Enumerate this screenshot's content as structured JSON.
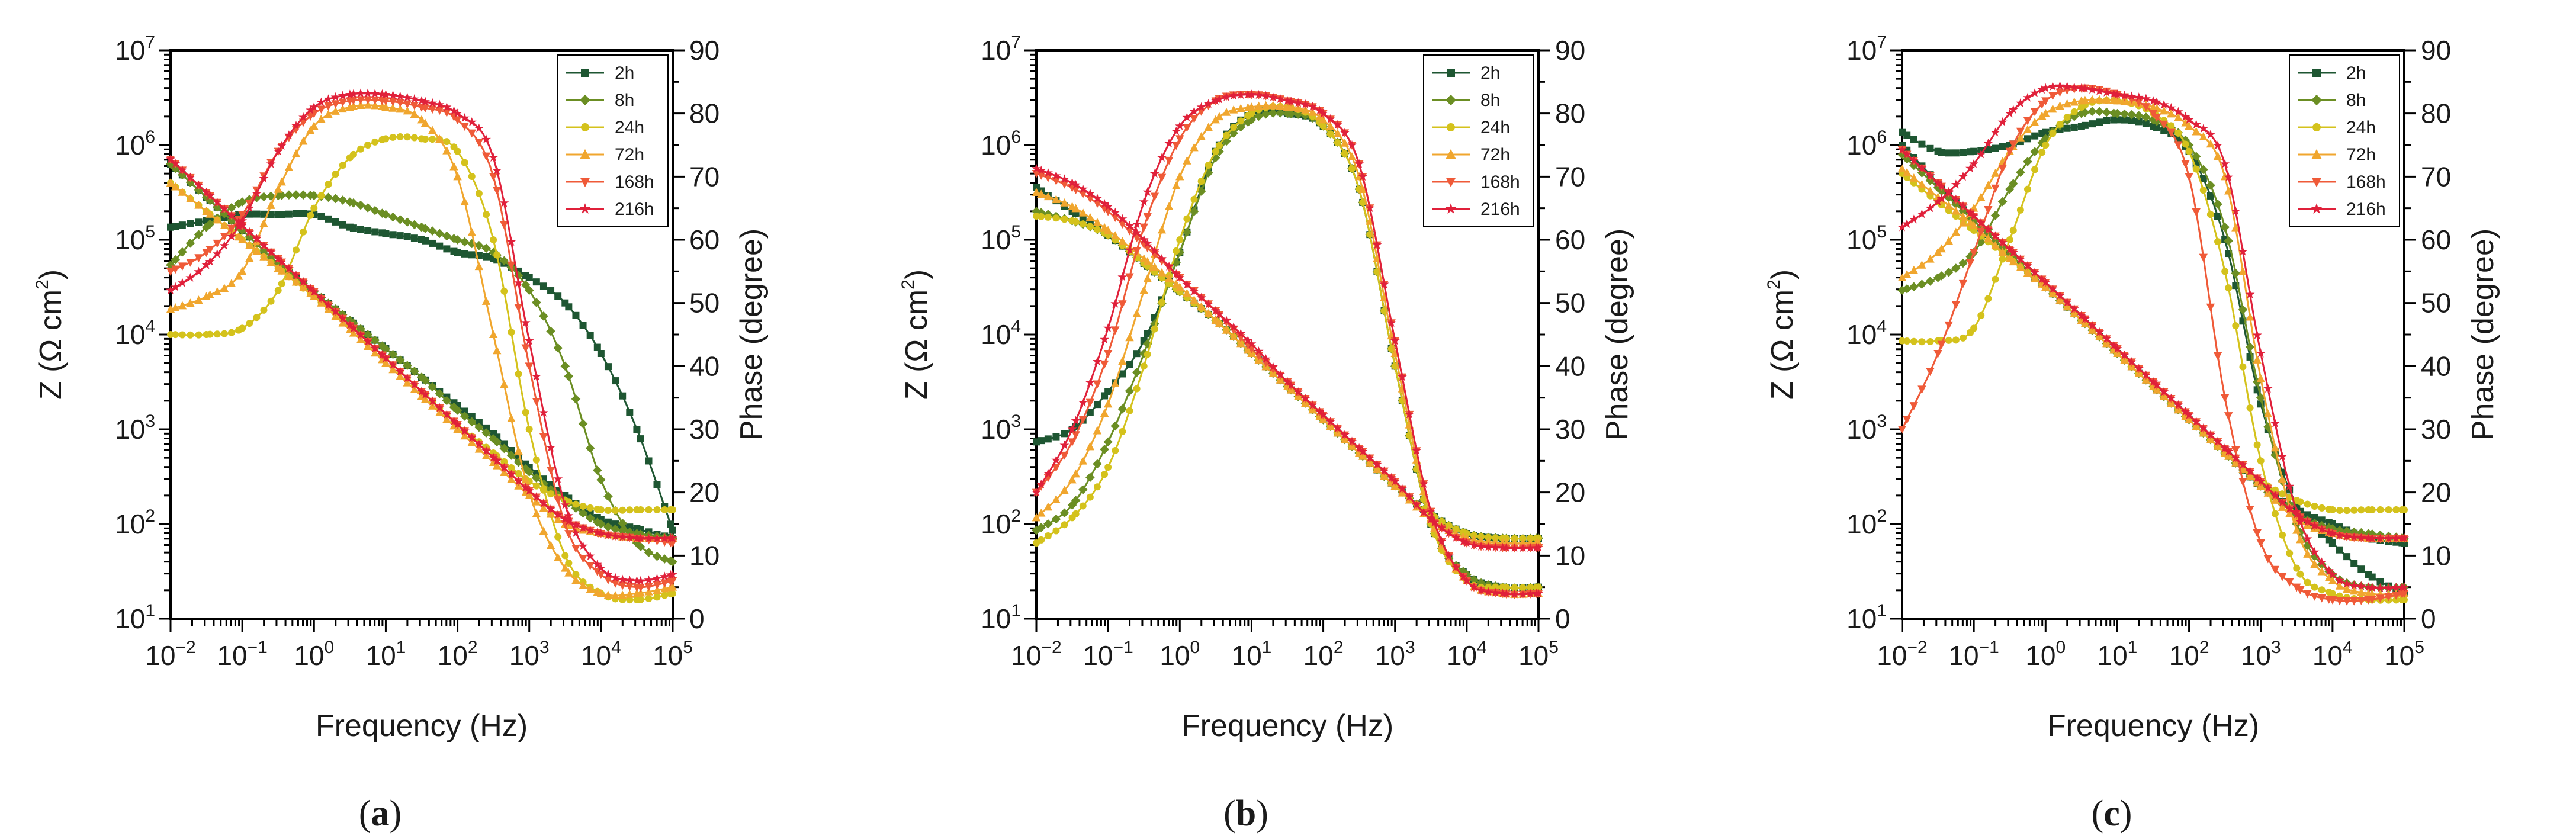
{
  "figure": {
    "panels": [
      "a",
      "b",
      "c"
    ],
    "legend_position": "top-right"
  },
  "series_style": [
    {
      "name": "2h",
      "color": "#1e5632",
      "marker": "square"
    },
    {
      "name": "8h",
      "color": "#6b8e23",
      "marker": "diamond"
    },
    {
      "name": "24h",
      "color": "#d4c21c",
      "marker": "circle"
    },
    {
      "name": "72h",
      "color": "#f0a62e",
      "marker": "triangle-up"
    },
    {
      "name": "168h",
      "color": "#ef5a38",
      "marker": "triangle-down"
    },
    {
      "name": "216h",
      "color": "#e0203a",
      "marker": "star"
    }
  ],
  "chart_data": [
    {
      "type": "line",
      "panel": "a",
      "title": "",
      "xlabel": "Frequency (Hz)",
      "ylabel": "Z (Ω cm²)",
      "y2label": "Phase (degree)",
      "xscale": "log",
      "xlim": [
        0.01,
        100000
      ],
      "yscale": "log",
      "ylim": [
        10,
        10000000
      ],
      "y2lim": [
        0,
        90
      ],
      "x_ticks": [
        "10-2",
        "10-1",
        "100",
        "101",
        "102",
        "103",
        "104",
        "105"
      ],
      "y_ticks": [
        "101",
        "102",
        "103",
        "104",
        "105",
        "106",
        "107"
      ],
      "y2_ticks": [
        "0",
        "10",
        "20",
        "30",
        "40",
        "50",
        "60",
        "70",
        "80",
        "90"
      ],
      "legend": [
        "2h",
        "8h",
        "24h",
        "72h",
        "168h",
        "216h"
      ],
      "x": [
        -2,
        -1.5,
        -1,
        -0.5,
        0,
        0.5,
        1,
        1.5,
        2,
        2.5,
        3,
        3.5,
        4,
        4.5,
        5
      ],
      "series": [
        {
          "name": "2h",
          "impedance_log10": [
            5.8,
            5.45,
            5.1,
            4.75,
            4.45,
            4.15,
            3.85,
            3.55,
            3.25,
            2.95,
            2.6,
            2.3,
            2.05,
            1.95,
            1.85
          ],
          "phase": [
            62,
            63,
            64,
            64,
            64,
            62,
            61,
            60,
            58,
            57,
            54,
            50,
            42,
            30,
            14
          ]
        },
        {
          "name": "8h",
          "impedance_log10": [
            5.8,
            5.45,
            5.1,
            4.75,
            4.45,
            4.15,
            3.85,
            3.55,
            3.2,
            2.9,
            2.55,
            2.25,
            2.0,
            1.9,
            1.85
          ],
          "phase": [
            56,
            62,
            66,
            67,
            67,
            66,
            64,
            62,
            60,
            58,
            52,
            40,
            22,
            12,
            9
          ]
        },
        {
          "name": "24h",
          "impedance_log10": [
            5.6,
            5.3,
            5.0,
            4.7,
            4.4,
            4.1,
            3.75,
            3.4,
            3.05,
            2.75,
            2.45,
            2.25,
            2.15,
            2.15,
            2.15
          ],
          "phase": [
            45,
            45,
            46,
            52,
            65,
            73,
            76,
            76,
            74,
            60,
            30,
            10,
            4,
            3,
            4
          ]
        },
        {
          "name": "72h",
          "impedance_log10": [
            5.6,
            5.3,
            5.0,
            4.7,
            4.4,
            4.05,
            3.7,
            3.35,
            3.0,
            2.65,
            2.3,
            2.0,
            1.9,
            1.85,
            1.85
          ],
          "phase": [
            49,
            51,
            55,
            68,
            78,
            81,
            81,
            79,
            70,
            45,
            20,
            8,
            4,
            4,
            5
          ]
        },
        {
          "name": "168h",
          "impedance_log10": [
            5.85,
            5.5,
            5.15,
            4.8,
            4.45,
            4.1,
            3.75,
            3.4,
            3.05,
            2.7,
            2.35,
            2.05,
            1.9,
            1.85,
            1.8
          ],
          "phase": [
            55,
            58,
            64,
            74,
            80,
            82,
            82,
            81,
            79,
            70,
            40,
            15,
            7,
            5,
            6
          ]
        },
        {
          "name": "216h",
          "impedance_log10": [
            5.85,
            5.5,
            5.15,
            4.8,
            4.45,
            4.1,
            3.75,
            3.4,
            3.05,
            2.7,
            2.35,
            2.05,
            1.9,
            1.85,
            1.85
          ],
          "phase": [
            52,
            56,
            63,
            74,
            81,
            83,
            83,
            82,
            80,
            73,
            44,
            18,
            8,
            6,
            7
          ]
        }
      ]
    },
    {
      "type": "line",
      "panel": "b",
      "title": "",
      "xlabel": "Frequency (Hz)",
      "ylabel": "Z (Ω cm²)",
      "y2label": "Phase (degree)",
      "xscale": "log",
      "xlim": [
        0.01,
        100000
      ],
      "yscale": "log",
      "ylim": [
        10,
        10000000
      ],
      "y2lim": [
        0,
        90
      ],
      "x_ticks": [
        "10-2",
        "10-1",
        "100",
        "101",
        "102",
        "103",
        "104",
        "105"
      ],
      "y_ticks": [
        "101",
        "102",
        "103",
        "104",
        "105",
        "106",
        "107"
      ],
      "y2_ticks": [
        "0",
        "10",
        "20",
        "30",
        "40",
        "50",
        "60",
        "70",
        "80",
        "90"
      ],
      "legend": [
        "2h",
        "8h",
        "24h",
        "72h",
        "168h",
        "216h"
      ],
      "x": [
        -2,
        -1.5,
        -1,
        -0.5,
        0,
        0.5,
        1,
        1.5,
        2,
        2.5,
        3,
        3.5,
        4,
        4.5,
        5
      ],
      "series": [
        {
          "name": "2h",
          "impedance_log10": [
            5.55,
            5.3,
            5.05,
            4.75,
            4.45,
            4.15,
            3.8,
            3.45,
            3.1,
            2.75,
            2.4,
            2.1,
            1.9,
            1.85,
            1.85
          ],
          "phase": [
            28,
            30,
            36,
            44,
            58,
            74,
            80,
            80,
            78,
            68,
            40,
            15,
            7,
            5,
            5
          ]
        },
        {
          "name": "8h",
          "impedance_log10": [
            5.3,
            5.2,
            5.05,
            4.75,
            4.45,
            4.15,
            3.8,
            3.45,
            3.1,
            2.75,
            2.4,
            2.1,
            1.9,
            1.85,
            1.85
          ],
          "phase": [
            14,
            18,
            28,
            42,
            58,
            73,
            79,
            80,
            78,
            68,
            40,
            15,
            7,
            5,
            5
          ]
        },
        {
          "name": "24h",
          "impedance_log10": [
            5.25,
            5.2,
            5.05,
            4.75,
            4.45,
            4.15,
            3.8,
            3.45,
            3.1,
            2.75,
            2.4,
            2.1,
            1.9,
            1.85,
            1.85
          ],
          "phase": [
            12,
            16,
            24,
            40,
            60,
            74,
            80,
            81,
            78,
            68,
            40,
            15,
            6,
            5,
            5
          ]
        },
        {
          "name": "72h",
          "impedance_log10": [
            5.5,
            5.35,
            5.1,
            4.8,
            4.5,
            4.15,
            3.8,
            3.45,
            3.1,
            2.75,
            2.4,
            2.05,
            1.85,
            1.8,
            1.8
          ],
          "phase": [
            16,
            22,
            34,
            52,
            70,
            79,
            81,
            81,
            79,
            70,
            42,
            16,
            6,
            4,
            4
          ]
        },
        {
          "name": "168h",
          "impedance_log10": [
            5.7,
            5.55,
            5.3,
            4.95,
            4.6,
            4.25,
            3.85,
            3.5,
            3.15,
            2.8,
            2.45,
            2.05,
            1.8,
            1.75,
            1.75
          ],
          "phase": [
            20,
            28,
            42,
            62,
            76,
            82,
            83,
            82,
            80,
            72,
            44,
            17,
            6,
            4,
            4
          ]
        },
        {
          "name": "216h",
          "impedance_log10": [
            5.75,
            5.6,
            5.35,
            5.0,
            4.6,
            4.25,
            3.9,
            3.5,
            3.15,
            2.8,
            2.45,
            2.05,
            1.8,
            1.75,
            1.75
          ],
          "phase": [
            20,
            30,
            46,
            66,
            78,
            82,
            83,
            82,
            80,
            72,
            44,
            17,
            6,
            4,
            4
          ]
        }
      ]
    },
    {
      "type": "line",
      "panel": "c",
      "title": "",
      "xlabel": "Frequency (Hz)",
      "ylabel": "Z (Ω cm²)",
      "y2label": "Phase (degree)",
      "xscale": "log",
      "xlim": [
        0.01,
        100000
      ],
      "yscale": "log",
      "ylim": [
        10,
        10000000
      ],
      "y2lim": [
        0,
        90
      ],
      "x_ticks": [
        "10-2",
        "10-1",
        "100",
        "101",
        "102",
        "103",
        "104",
        "105"
      ],
      "y_ticks": [
        "101",
        "102",
        "103",
        "104",
        "105",
        "106",
        "107"
      ],
      "y2_ticks": [
        "0",
        "10",
        "20",
        "30",
        "40",
        "50",
        "60",
        "70",
        "80",
        "90"
      ],
      "legend": [
        "2h",
        "8h",
        "24h",
        "72h",
        "168h",
        "216h"
      ],
      "x": [
        -2,
        -1.5,
        -1,
        -0.5,
        0,
        0.5,
        1,
        1.5,
        2,
        2.5,
        3,
        3.5,
        4,
        4.5,
        5
      ],
      "series": [
        {
          "name": "2h",
          "impedance_log10": [
            6.0,
            5.6,
            5.2,
            4.85,
            4.5,
            4.15,
            3.8,
            3.45,
            3.1,
            2.75,
            2.4,
            2.15,
            2.0,
            1.85,
            1.8
          ],
          "phase": [
            77,
            74,
            74,
            75,
            77,
            78,
            79,
            78,
            74,
            60,
            34,
            18,
            12,
            7,
            4
          ]
        },
        {
          "name": "8h",
          "impedance_log10": [
            5.9,
            5.55,
            5.2,
            4.85,
            4.5,
            4.15,
            3.8,
            3.45,
            3.1,
            2.75,
            2.4,
            2.1,
            1.95,
            1.9,
            1.85
          ],
          "phase": [
            52,
            54,
            58,
            68,
            76,
            80,
            80,
            79,
            75,
            62,
            35,
            15,
            7,
            5,
            5
          ]
        },
        {
          "name": "24h",
          "impedance_log10": [
            5.7,
            5.4,
            5.1,
            4.8,
            4.5,
            4.15,
            3.8,
            3.45,
            3.1,
            2.75,
            2.45,
            2.25,
            2.15,
            2.15,
            2.15
          ],
          "phase": [
            44,
            44,
            46,
            60,
            75,
            81,
            82,
            80,
            74,
            55,
            25,
            8,
            4,
            3,
            3
          ]
        },
        {
          "name": "72h",
          "impedance_log10": [
            5.75,
            5.45,
            5.15,
            4.8,
            4.5,
            4.15,
            3.8,
            3.45,
            3.1,
            2.75,
            2.4,
            2.05,
            1.9,
            1.85,
            1.85
          ],
          "phase": [
            54,
            58,
            65,
            74,
            80,
            82,
            82,
            81,
            78,
            70,
            38,
            14,
            6,
            4,
            4
          ]
        },
        {
          "name": "168h",
          "impedance_log10": [
            5.95,
            5.6,
            5.25,
            4.9,
            4.55,
            4.2,
            3.85,
            3.5,
            3.15,
            2.8,
            2.45,
            2.1,
            1.9,
            1.85,
            1.85
          ],
          "phase": [
            30,
            42,
            58,
            74,
            82,
            84,
            83,
            80,
            70,
            35,
            12,
            5,
            3,
            3,
            4
          ]
        },
        {
          "name": "216h",
          "impedance_log10": [
            5.95,
            5.6,
            5.25,
            4.9,
            4.55,
            4.2,
            3.85,
            3.5,
            3.15,
            2.8,
            2.45,
            2.1,
            1.9,
            1.85,
            1.85
          ],
          "phase": [
            62,
            66,
            72,
            80,
            84,
            84,
            83,
            82,
            79,
            72,
            42,
            17,
            7,
            5,
            5
          ]
        }
      ]
    }
  ]
}
